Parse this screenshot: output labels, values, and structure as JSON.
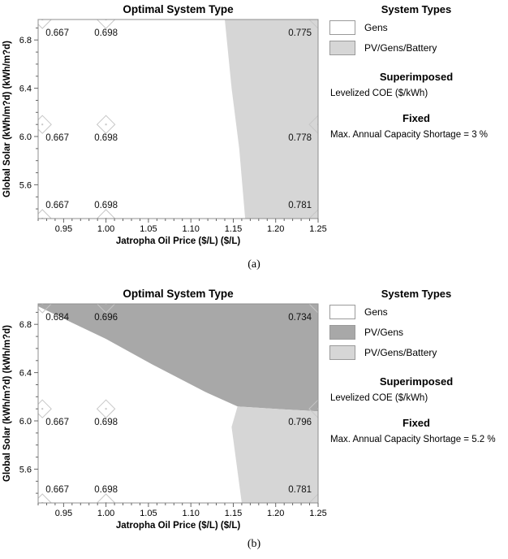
{
  "figure": {
    "captions": {
      "a": "(a)",
      "b": "(b)"
    }
  },
  "colors": {
    "white": "#ffffff",
    "light_gray": "#d6d6d6",
    "dark_gray": "#a8a8a8",
    "frame": "#8f8f8f",
    "marker": "#c6c6c6",
    "tick": "#666666"
  },
  "chart_data": [
    {
      "type": "sensitivity-region-map",
      "title": "Optimal System Type",
      "xlabel": "Jatropha Oil Price ($/L) ($/L)",
      "ylabel": "Global Solar (kWh/m?d) (kWh/m?d)",
      "caption": "(a)",
      "xlim": [
        0.92,
        1.25
      ],
      "ylim": [
        5.32,
        6.97
      ],
      "x_major_ticks": [
        "0.95",
        "1.00",
        "1.05",
        "1.10",
        "1.15",
        "1.20",
        "1.25"
      ],
      "x_minor_step": 0.01,
      "y_major_ticks": [
        "6.8",
        "6.4",
        "6.0",
        "5.6"
      ],
      "y_minor_step": 0.1,
      "grid": false,
      "regions": [
        {
          "name": "PV/Gens/Battery",
          "color_key": "light_gray",
          "points": [
            [
              1.14,
              6.97
            ],
            [
              1.25,
              6.97
            ],
            [
              1.25,
              5.32
            ],
            [
              1.164,
              5.32
            ],
            [
              1.157,
              5.9
            ],
            [
              1.148,
              6.4
            ]
          ]
        }
      ],
      "background_region": {
        "name": "Gens",
        "color_key": "white"
      },
      "points": [
        {
          "x": 0.925,
          "y": 6.97,
          "label": "0.667",
          "row": "top",
          "col": "left"
        },
        {
          "x": 1.0,
          "y": 6.97,
          "label": "0.698",
          "row": "top",
          "col": "mid"
        },
        {
          "x": 1.25,
          "y": 6.97,
          "label": "0.775",
          "row": "top",
          "col": "right"
        },
        {
          "x": 0.925,
          "y": 6.1,
          "label": "0.667",
          "row": "mid",
          "col": "left"
        },
        {
          "x": 1.0,
          "y": 6.1,
          "label": "0.698",
          "row": "mid",
          "col": "mid"
        },
        {
          "x": 1.25,
          "y": 6.1,
          "label": "0.778",
          "row": "mid",
          "col": "right"
        },
        {
          "x": 0.925,
          "y": 5.32,
          "label": "0.667",
          "row": "bottom",
          "col": "left"
        },
        {
          "x": 1.0,
          "y": 5.32,
          "label": "0.698",
          "row": "bottom",
          "col": "mid"
        },
        {
          "x": 1.25,
          "y": 5.32,
          "label": "0.781",
          "row": "bottom",
          "col": "right"
        }
      ],
      "legend": {
        "heading": "System Types",
        "items": [
          {
            "label": "Gens",
            "color_key": "white"
          },
          {
            "label": "PV/Gens/Battery",
            "color_key": "light_gray"
          }
        ],
        "superimposed_heading": "Superimposed",
        "superimposed_label": "Levelized COE ($/kWh)",
        "fixed_heading": "Fixed",
        "fixed_label": "Max. Annual Capacity Shortage = 3 %"
      }
    },
    {
      "type": "sensitivity-region-map",
      "title": "Optimal System Type",
      "xlabel": "Jatropha Oil Price ($/L) ($/L)",
      "ylabel": "Global Solar (kWh/m?d) (kWh/m?d)",
      "caption": "(b)",
      "xlim": [
        0.92,
        1.25
      ],
      "ylim": [
        5.32,
        6.97
      ],
      "x_major_ticks": [
        "0.95",
        "1.00",
        "1.05",
        "1.10",
        "1.15",
        "1.20",
        "1.25"
      ],
      "x_minor_step": 0.01,
      "y_major_ticks": [
        "6.8",
        "6.4",
        "6.0",
        "5.6"
      ],
      "y_minor_step": 0.1,
      "grid": false,
      "regions": [
        {
          "name": "PV/Gens",
          "color_key": "dark_gray",
          "points": [
            [
              0.92,
              6.97
            ],
            [
              1.25,
              6.97
            ],
            [
              1.25,
              6.08
            ],
            [
              1.21,
              6.095
            ],
            [
              1.155,
              6.12
            ],
            [
              1.117,
              6.24
            ],
            [
              1.054,
              6.47
            ],
            [
              1.0,
              6.68
            ],
            [
              0.961,
              6.81
            ],
            [
              0.92,
              6.95
            ]
          ]
        },
        {
          "name": "PV/Gens/Battery",
          "color_key": "light_gray",
          "points": [
            [
              1.155,
              6.12
            ],
            [
              1.21,
              6.095
            ],
            [
              1.25,
              6.08
            ],
            [
              1.25,
              5.32
            ],
            [
              1.16,
              5.32
            ],
            [
              1.148,
              5.95
            ]
          ]
        }
      ],
      "background_region": {
        "name": "Gens",
        "color_key": "white"
      },
      "points": [
        {
          "x": 0.925,
          "y": 6.97,
          "label": "0.684",
          "row": "top",
          "col": "left"
        },
        {
          "x": 1.0,
          "y": 6.97,
          "label": "0.696",
          "row": "top",
          "col": "mid"
        },
        {
          "x": 1.25,
          "y": 6.97,
          "label": "0.734",
          "row": "top",
          "col": "right"
        },
        {
          "x": 0.925,
          "y": 6.1,
          "label": "0.667",
          "row": "mid",
          "col": "left"
        },
        {
          "x": 1.0,
          "y": 6.1,
          "label": "0.698",
          "row": "mid",
          "col": "mid"
        },
        {
          "x": 1.25,
          "y": 6.1,
          "label": "0.796",
          "row": "mid",
          "col": "right"
        },
        {
          "x": 0.925,
          "y": 5.32,
          "label": "0.667",
          "row": "bottom",
          "col": "left"
        },
        {
          "x": 1.0,
          "y": 5.32,
          "label": "0.698",
          "row": "bottom",
          "col": "mid"
        },
        {
          "x": 1.25,
          "y": 5.32,
          "label": "0.781",
          "row": "bottom",
          "col": "right"
        }
      ],
      "legend": {
        "heading": "System Types",
        "items": [
          {
            "label": "Gens",
            "color_key": "white"
          },
          {
            "label": "PV/Gens",
            "color_key": "dark_gray"
          },
          {
            "label": "PV/Gens/Battery",
            "color_key": "light_gray"
          }
        ],
        "superimposed_heading": "Superimposed",
        "superimposed_label": "Levelized COE ($/kWh)",
        "fixed_heading": "Fixed",
        "fixed_label": "Max. Annual Capacity Shortage = 5.2 %"
      }
    }
  ]
}
